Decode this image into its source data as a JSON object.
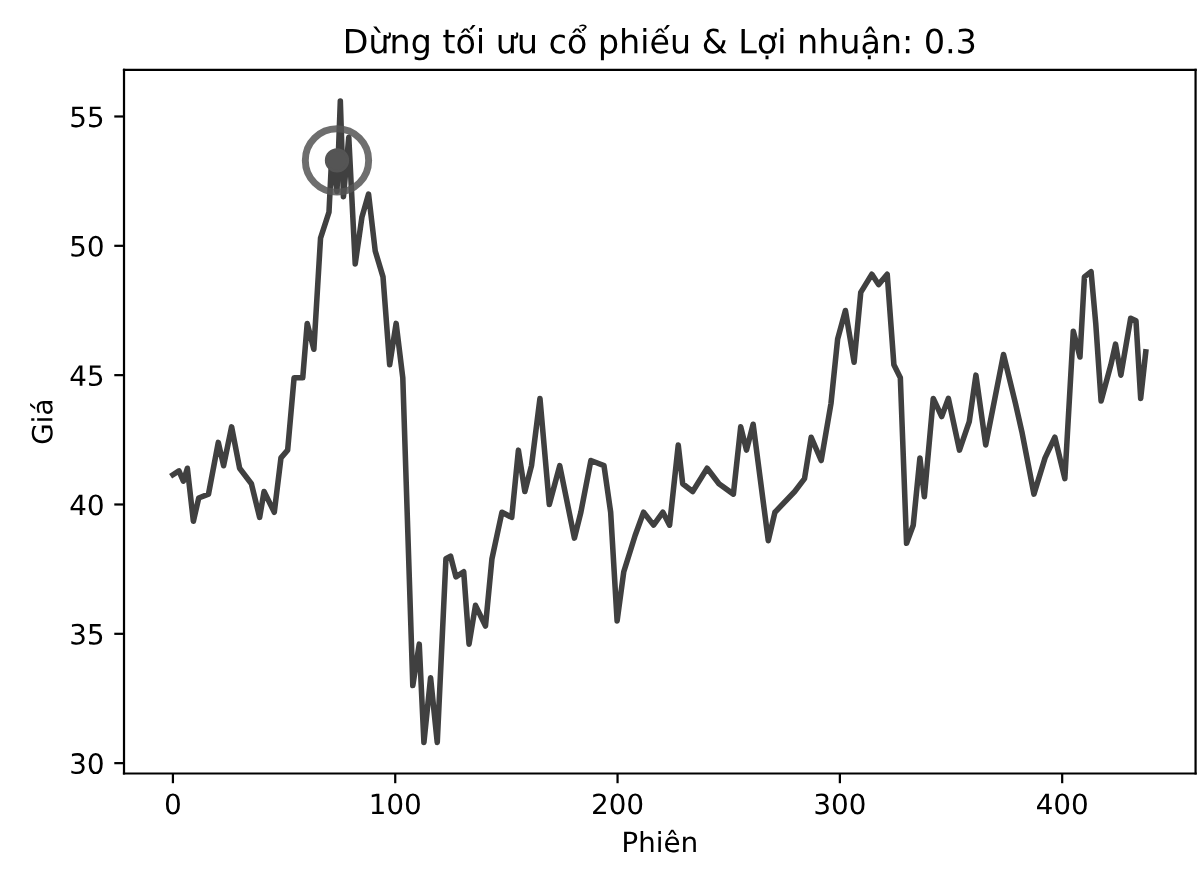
{
  "chart_data": {
    "type": "line",
    "title": "Dừng tối ưu cổ phiếu & Lợi nhuận: 0.3",
    "xlabel": "Phiên",
    "ylabel": "Giá",
    "xlim": [
      -22,
      460
    ],
    "ylim": [
      29.6,
      56.8
    ],
    "xticks": [
      0,
      100,
      200,
      300,
      400
    ],
    "yticks": [
      30,
      35,
      40,
      45,
      50,
      55
    ],
    "grid": false,
    "legend": false,
    "series": [
      {
        "color": "#404040",
        "line_style": "solid",
        "marker": "none",
        "x": [
          0,
          2.7,
          4.7,
          6.5,
          9.2,
          11.6,
          16,
          20.4,
          22.8,
          26.4,
          30,
          35.3,
          39,
          41,
          45.6,
          48.6,
          51.6,
          54.5,
          58.4,
          60.4,
          63.4,
          66.4,
          70.2,
          71.4,
          73.8,
          75.3,
          76.7,
          79.1,
          82,
          85,
          88,
          91,
          94.5,
          97.5,
          100.4,
          103.4,
          107.9,
          110.8,
          112.9,
          115.9,
          118.9,
          122.8,
          124.9,
          127.3,
          130.8,
          133.2,
          136.1,
          140.6,
          143.5,
          148,
          152.4,
          155.4,
          158.3,
          161.3,
          165.1,
          169.3,
          174,
          180.6,
          183.5,
          188,
          193.9,
          196.9,
          199.8,
          202.8,
          207.9,
          211.7,
          216.2,
          220.4,
          223.4,
          227.3,
          229.3,
          233.8,
          240.3,
          245.6,
          252.1,
          255.4,
          258,
          261,
          267.8,
          270.8,
          279.7,
          284.1,
          287.1,
          291.6,
          296,
          299,
          302.5,
          306.4,
          309.4,
          314.4,
          317.4,
          321.3,
          324.3,
          327.2,
          330,
          333,
          336,
          338,
          342,
          345.8,
          348.8,
          353.8,
          358.2,
          361.2,
          365.6,
          373.6,
          379,
          381.9,
          387.3,
          392.3,
          396.7,
          401.2,
          405,
          408,
          410,
          413,
          415.1,
          417.5,
          421.9,
          424,
          426.4,
          430.8,
          433.2,
          435.3,
          437.6
        ],
        "values": [
          41.15,
          41.3,
          40.9,
          41.4,
          39.35,
          40.25,
          40.4,
          42.4,
          41.5,
          43.0,
          41.4,
          40.8,
          39.5,
          40.5,
          39.7,
          41.8,
          42.1,
          44.9,
          44.9,
          47.0,
          46.0,
          50.3,
          51.3,
          53.4,
          52.1,
          55.6,
          51.9,
          54.2,
          49.3,
          51.1,
          52.0,
          49.8,
          48.8,
          45.4,
          47.0,
          44.9,
          33.0,
          34.6,
          30.8,
          33.3,
          30.8,
          37.9,
          38.0,
          37.2,
          37.4,
          34.6,
          36.1,
          35.3,
          37.9,
          39.7,
          39.5,
          42.1,
          40.5,
          41.5,
          44.1,
          40.0,
          41.5,
          38.7,
          39.7,
          41.7,
          41.5,
          39.7,
          35.5,
          37.4,
          38.8,
          39.7,
          39.2,
          39.7,
          39.2,
          42.3,
          40.8,
          40.5,
          41.4,
          40.8,
          40.4,
          43.0,
          42.1,
          43.1,
          38.6,
          39.7,
          40.5,
          41.0,
          42.6,
          41.7,
          43.9,
          46.4,
          47.5,
          45.5,
          48.2,
          48.9,
          48.5,
          48.9,
          45.4,
          44.9,
          38.5,
          39.2,
          41.8,
          40.3,
          44.1,
          43.4,
          44.1,
          42.1,
          43.2,
          45.0,
          42.3,
          45.8,
          43.9,
          42.8,
          40.4,
          41.8,
          42.6,
          41.0,
          46.7,
          45.7,
          48.8,
          49.0,
          47.0,
          44.0,
          45.4,
          46.2,
          45.0,
          47.2,
          47.1,
          44.1,
          45.9
        ]
      },
      {
        "type": "scatter",
        "color": "#555555",
        "marker": "circle",
        "x": [
          73.8
        ],
        "values": [
          53.3
        ]
      }
    ]
  }
}
